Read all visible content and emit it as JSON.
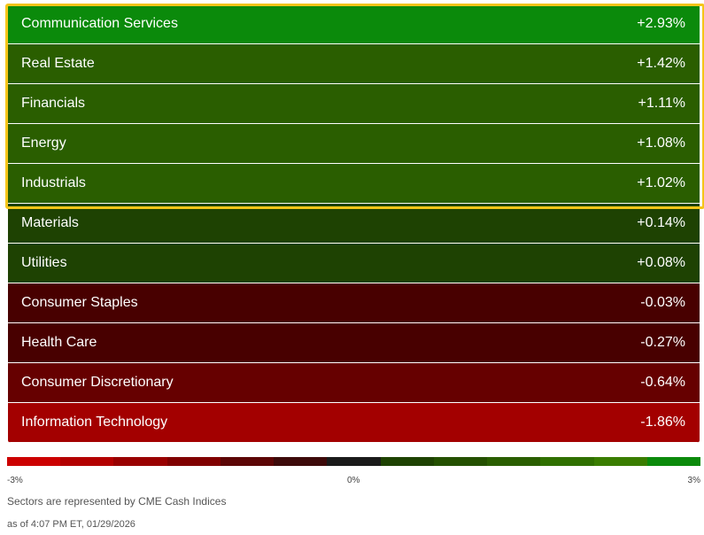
{
  "sectors": [
    {
      "name": "Communication Services",
      "change": "+2.93%",
      "color": "#0b8a0b"
    },
    {
      "name": "Real Estate",
      "change": "+1.42%",
      "color": "#2a5e00"
    },
    {
      "name": "Financials",
      "change": "+1.11%",
      "color": "#2a5e00"
    },
    {
      "name": "Energy",
      "change": "+1.08%",
      "color": "#2a5e00"
    },
    {
      "name": "Industrials",
      "change": "+1.02%",
      "color": "#2a5e00"
    },
    {
      "name": "Materials",
      "change": "+0.14%",
      "color": "#1e4202"
    },
    {
      "name": "Utilities",
      "change": "+0.08%",
      "color": "#1e4202"
    },
    {
      "name": "Consumer Staples",
      "change": "-0.03%",
      "color": "#480000"
    },
    {
      "name": "Health Care",
      "change": "-0.27%",
      "color": "#480000"
    },
    {
      "name": "Consumer Discretionary",
      "change": "-0.64%",
      "color": "#660000"
    },
    {
      "name": "Information Technology",
      "change": "-1.86%",
      "color": "#a30000"
    }
  ],
  "scale": {
    "colors": [
      "#cc0000",
      "#b30000",
      "#990000",
      "#800000",
      "#5c0606",
      "#3d0a0a",
      "#1a1a1a",
      "#1e4202",
      "#245000",
      "#2a5e00",
      "#307000",
      "#3a7d00",
      "#0b8a0b"
    ],
    "labels": [
      "-3%",
      "0%",
      "3%"
    ]
  },
  "footnote": "Sectors are represented by CME Cash Indices",
  "timestamp": "as of 4:07 PM ET, 01/29/2026"
}
